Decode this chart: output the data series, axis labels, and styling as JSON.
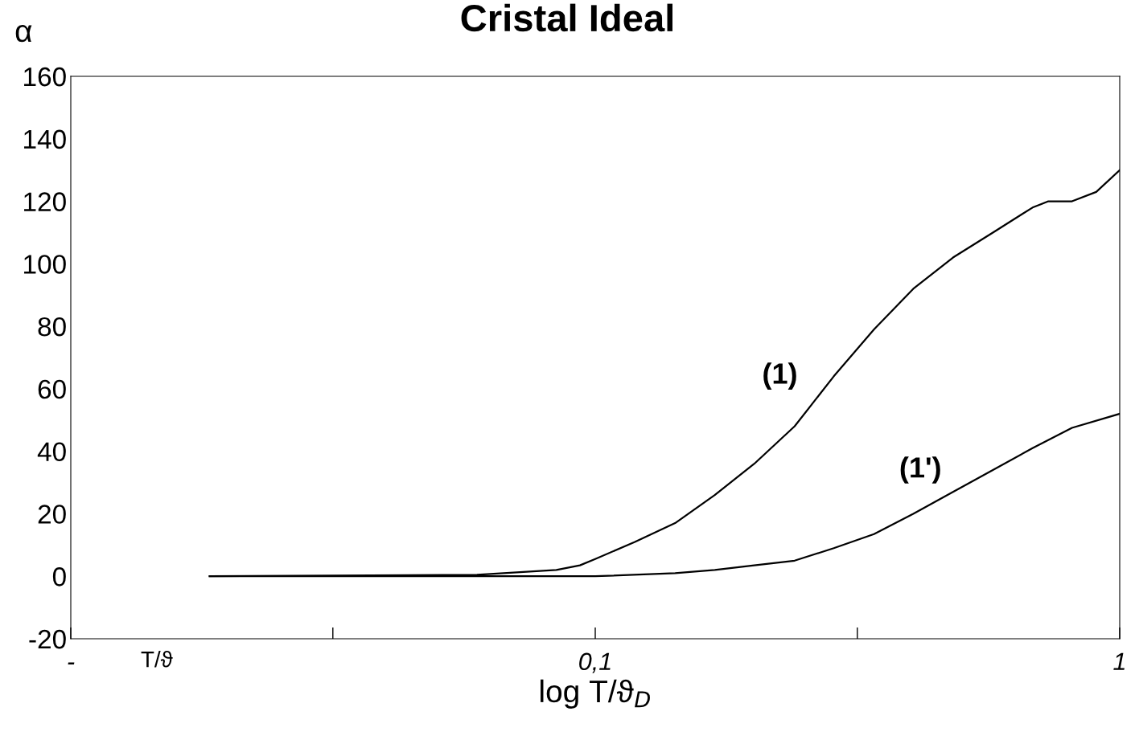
{
  "chart_data": {
    "type": "line",
    "title": "Cristal Ideal",
    "xlabel": "log T/ϑ$_{D}$",
    "ylabel": "α",
    "log": "x",
    "xlim": [
      0.01,
      1
    ],
    "xticks": [
      {
        "value": 0.01,
        "label": "-"
      },
      {
        "value": 0.0316,
        "label": null
      },
      {
        "value": 0.1,
        "label": "0,1"
      },
      {
        "value": 0.316,
        "label": null
      },
      {
        "value": 1,
        "label": "1"
      }
    ],
    "ylim": [
      -20,
      160
    ],
    "yticks": [
      -20,
      0,
      20,
      40,
      60,
      80,
      100,
      120,
      140,
      160
    ],
    "grid": false,
    "marker": "none",
    "line_style": "solid",
    "series": [
      {
        "color": "#000000",
        "x": [
          0.0184,
          0.0595,
          0.0843,
          0.0935,
          0.1,
          0.119,
          0.142,
          0.169,
          0.201,
          0.24,
          0.285,
          0.34,
          0.404,
          0.481,
          0.573,
          0.682,
          0.731,
          0.811,
          0.902,
          1
        ],
        "values": [
          0,
          0.5,
          2,
          3.5,
          5.5,
          11,
          17,
          26,
          36,
          48,
          64,
          79,
          92,
          102,
          110,
          118,
          120,
          120,
          123,
          130
        ]
      },
      {
        "color": "#000000",
        "x": [
          0.0184,
          0.1,
          0.142,
          0.169,
          0.201,
          0.24,
          0.285,
          0.34,
          0.404,
          0.481,
          0.573,
          0.682,
          0.811,
          1
        ],
        "values": [
          0,
          0,
          1,
          2,
          3.5,
          5,
          9,
          13.5,
          20,
          27,
          34,
          41,
          47.5,
          52
        ]
      }
    ],
    "annotations": [
      "(1)",
      "(1')",
      "T/ϑ"
    ]
  }
}
